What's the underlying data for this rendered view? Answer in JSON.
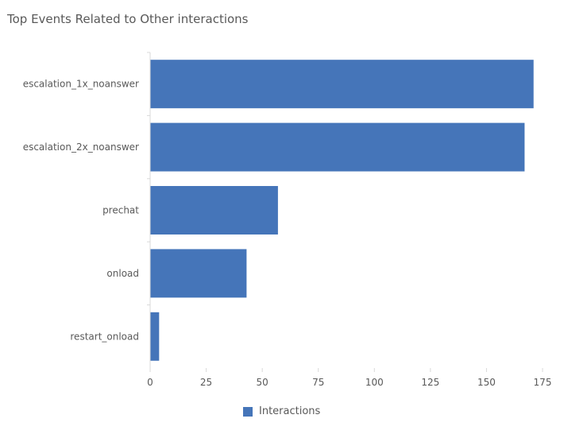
{
  "chart_data": {
    "type": "bar",
    "orientation": "horizontal",
    "title": "Top Events Related to Other interactions",
    "xlabel": "",
    "ylabel": "",
    "categories": [
      "escalation_1x_noanswer",
      "escalation_2x_noanswer",
      "prechat",
      "onload",
      "restart_onload"
    ],
    "series": [
      {
        "name": "Interactions",
        "values": [
          171,
          167,
          57,
          43,
          4
        ],
        "color": "#4575b9"
      }
    ],
    "xlim": [
      0,
      175
    ],
    "xticks": [
      0,
      25,
      50,
      75,
      100,
      125,
      150,
      175
    ],
    "grid": false,
    "legend_position": "bottom"
  }
}
